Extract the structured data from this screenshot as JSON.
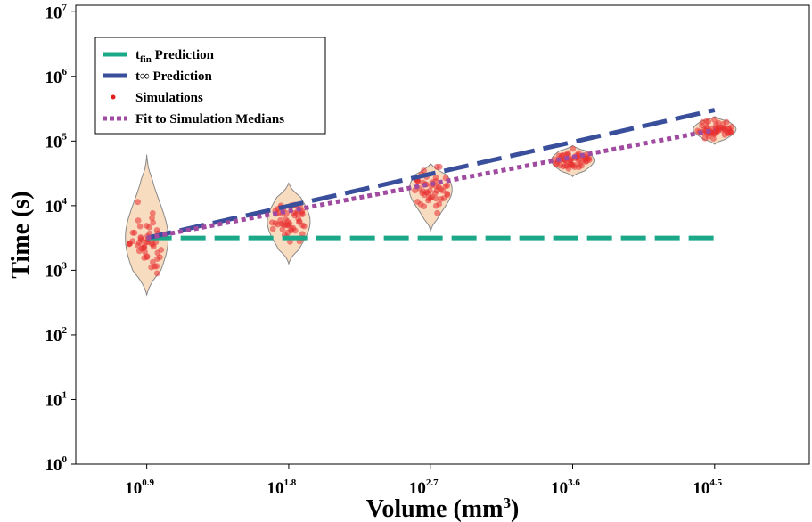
{
  "chart_data": {
    "type": "scatter",
    "xlabel": "Volume (mm",
    "xlabel_sup": "3",
    "xlabel_tail": ")",
    "ylabel": "Time (s)",
    "x_scale": "log10",
    "y_scale": "log10",
    "x_ticks": [
      {
        "base": "10",
        "exp": "0.9",
        "value": 0.9
      },
      {
        "base": "10",
        "exp": "1.8",
        "value": 1.8
      },
      {
        "base": "10",
        "exp": "2.7",
        "value": 2.7
      },
      {
        "base": "10",
        "exp": "3.6",
        "value": 3.6
      },
      {
        "base": "10",
        "exp": "4.5",
        "value": 4.5
      }
    ],
    "y_ticks": [
      {
        "base": "10",
        "exp": "0",
        "value": 0
      },
      {
        "base": "10",
        "exp": "1",
        "value": 1
      },
      {
        "base": "10",
        "exp": "2",
        "value": 2
      },
      {
        "base": "10",
        "exp": "3",
        "value": 3
      },
      {
        "base": "10",
        "exp": "4",
        "value": 4
      },
      {
        "base": "10",
        "exp": "5",
        "value": 5
      },
      {
        "base": "10",
        "exp": "6",
        "value": 6
      },
      {
        "base": "10",
        "exp": "7",
        "value": 7
      }
    ],
    "xlim_log10": [
      0.45,
      5.1
    ],
    "ylim_log10": [
      0,
      7.1
    ],
    "legend": {
      "placement": "top-left",
      "entries": [
        {
          "label_main": "t",
          "label_sub": "fin",
          "label_rest": " Prediction",
          "style": "dash-long",
          "color": "#1aa889"
        },
        {
          "label_main": "t",
          "label_sub": "",
          "label_rest": "∞ Prediction",
          "style": "dash-long",
          "color": "#3a4f9b"
        },
        {
          "label_main": "Simulations",
          "label_sub": "",
          "label_rest": "",
          "style": "point",
          "color": "#e02020"
        },
        {
          "label_main": "Fit to Simulation Medians",
          "label_sub": "",
          "label_rest": "",
          "style": "dotted",
          "color": "#a04aa0"
        }
      ]
    },
    "series": [
      {
        "name": "t_fin Prediction",
        "kind": "line",
        "color": "#1aa889",
        "x_log10": [
          0.9,
          4.5
        ],
        "y_log10": [
          3.5,
          3.5
        ]
      },
      {
        "name": "t_inf Prediction",
        "kind": "line",
        "color": "#3a4f9b",
        "x_log10": [
          0.9,
          4.5
        ],
        "y_log10": [
          3.5,
          5.48
        ]
      },
      {
        "name": "Fit to Simulation Medians",
        "kind": "line",
        "color": "#a04aa0",
        "x_log10": [
          0.9,
          4.5
        ],
        "y_log10": [
          3.5,
          5.17
        ]
      }
    ],
    "violins": [
      {
        "x_log10": 0.9,
        "median_log10": 3.5,
        "min_log10": 2.62,
        "max_log10": 4.79,
        "spread": 0.55
      },
      {
        "x_log10": 1.8,
        "median_log10": 3.75,
        "min_log10": 3.1,
        "max_log10": 4.35,
        "spread": 0.35
      },
      {
        "x_log10": 2.7,
        "median_log10": 4.25,
        "min_log10": 3.6,
        "max_log10": 4.65,
        "spread": 0.3
      },
      {
        "x_log10": 3.6,
        "median_log10": 4.7,
        "min_log10": 4.45,
        "max_log10": 4.93,
        "spread": 0.15
      },
      {
        "x_log10": 4.5,
        "median_log10": 5.18,
        "min_log10": 4.95,
        "max_log10": 5.38,
        "spread": 0.13
      }
    ],
    "colors": {
      "violin_fill": "#f8dcc0",
      "violin_edge": "#888888",
      "point": "#e83030"
    }
  }
}
